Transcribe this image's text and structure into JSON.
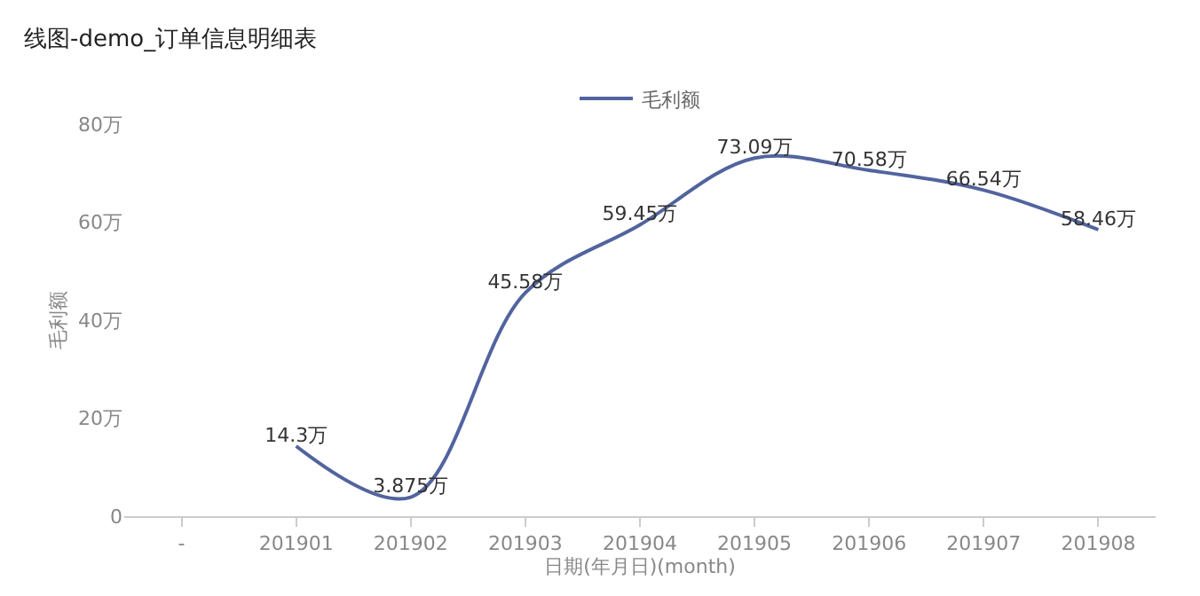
{
  "chart_data": {
    "type": "line",
    "title": "线图-demo_订单信息明细表",
    "xlabel": "日期(年月日)(month)",
    "ylabel": "毛利额",
    "categories": [
      "-",
      "201901",
      "201902",
      "201903",
      "201904",
      "201905",
      "201906",
      "201907",
      "201908"
    ],
    "series": [
      {
        "name": "毛利额",
        "color": "#52649e",
        "values": [
          null,
          14.3,
          3.875,
          45.58,
          59.45,
          73.09,
          70.58,
          66.54,
          58.46
        ],
        "value_labels": [
          null,
          "14.3万",
          "3.875万",
          "45.58万",
          "59.45万",
          "73.09万",
          "70.58万",
          "66.54万",
          "58.46万"
        ]
      }
    ],
    "ylim": [
      0,
      80
    ],
    "yticks": [
      0,
      {
        "value": 20,
        "label": "20万"
      },
      {
        "value": 40,
        "label": "40万"
      },
      {
        "value": 60,
        "label": "60万"
      },
      {
        "value": 80,
        "label": "80万"
      }
    ],
    "grid": false,
    "legend": "top",
    "marker": "none",
    "line_style": "solid"
  }
}
